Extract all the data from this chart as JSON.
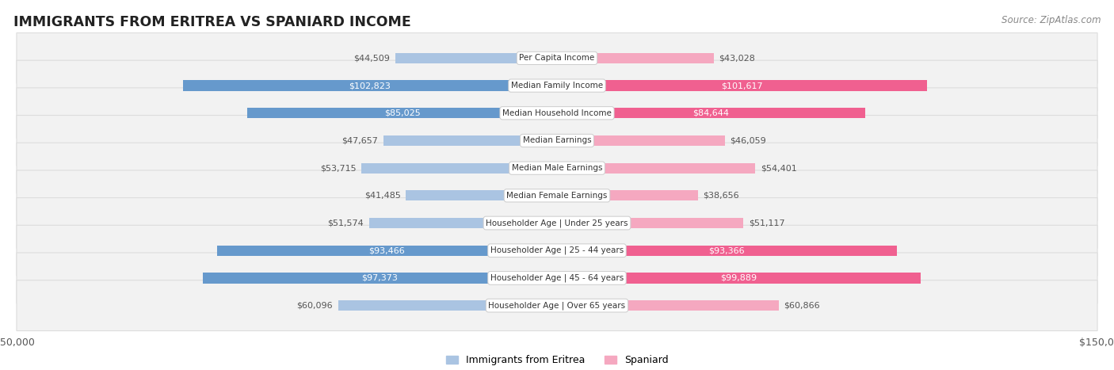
{
  "title": "IMMIGRANTS FROM ERITREA VS SPANIARD INCOME",
  "source": "Source: ZipAtlas.com",
  "categories": [
    "Per Capita Income",
    "Median Family Income",
    "Median Household Income",
    "Median Earnings",
    "Median Male Earnings",
    "Median Female Earnings",
    "Householder Age | Under 25 years",
    "Householder Age | 25 - 44 years",
    "Householder Age | 45 - 64 years",
    "Householder Age | Over 65 years"
  ],
  "eritrea_values": [
    44509,
    102823,
    85025,
    47657,
    53715,
    41485,
    51574,
    93466,
    97373,
    60096
  ],
  "spaniard_values": [
    43028,
    101617,
    84644,
    46059,
    54401,
    38656,
    51117,
    93366,
    99889,
    60866
  ],
  "eritrea_labels": [
    "$44,509",
    "$102,823",
    "$85,025",
    "$47,657",
    "$53,715",
    "$41,485",
    "$51,574",
    "$93,466",
    "$97,373",
    "$60,096"
  ],
  "spaniard_labels": [
    "$43,028",
    "$101,617",
    "$84,644",
    "$46,059",
    "$54,401",
    "$38,656",
    "$51,117",
    "$93,366",
    "$99,889",
    "$60,866"
  ],
  "max_value": 150000,
  "eritrea_color_light": "#aac4e2",
  "eritrea_color_dark": "#6699cc",
  "spaniard_color_light": "#f5a8c0",
  "spaniard_color_dark": "#f06090",
  "background_color": "#ffffff",
  "row_bg_color": "#f2f2f2",
  "row_border_color": "#dddddd",
  "legend_eritrea": "Immigrants from Eritrea",
  "legend_spaniard": "Spaniard",
  "threshold_dark": 75000,
  "label_outside_color": "#555555",
  "label_inside_color": "#ffffff",
  "category_text_color": "#333333"
}
